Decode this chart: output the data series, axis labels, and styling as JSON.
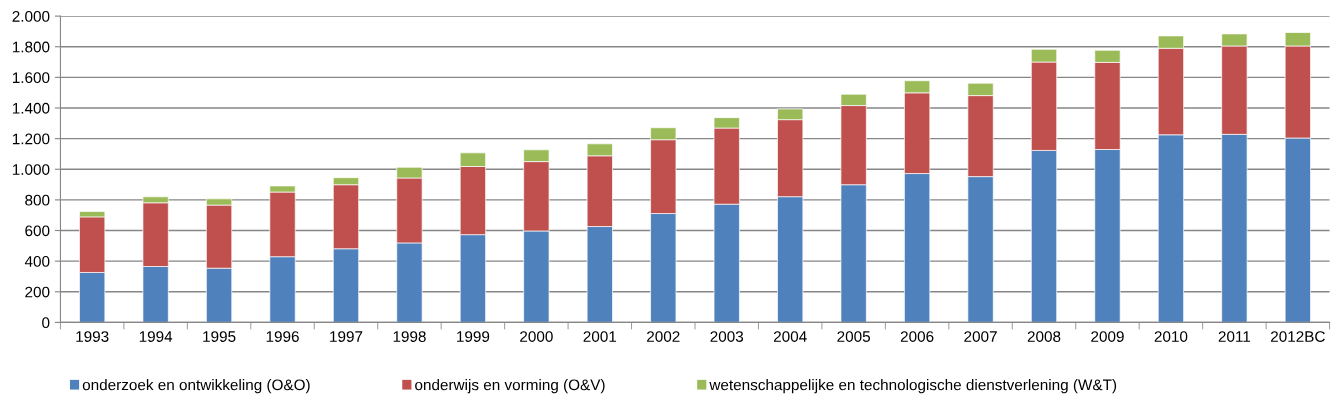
{
  "chart_data": {
    "type": "bar",
    "stacked": true,
    "grid": "y",
    "legend": "bottom",
    "categories": [
      "1993",
      "1994",
      "1995",
      "1996",
      "1997",
      "1998",
      "1999",
      "2000",
      "2001",
      "2002",
      "2003",
      "2004",
      "2005",
      "2006",
      "2007",
      "2008",
      "2009",
      "2010",
      "2011",
      "2012BC"
    ],
    "series": [
      {
        "name": "onderzoek en ontwikkeling (O&O)",
        "color": "#4f81bd",
        "values": [
          326,
          365,
          354,
          429,
          481,
          519,
          573,
          597,
          626,
          711,
          772,
          821,
          899,
          972,
          952,
          1123,
          1129,
          1225,
          1228,
          1204
        ]
      },
      {
        "name": "onderwijs en vorming (O&V)",
        "color": "#c0504d",
        "values": [
          363,
          416,
          412,
          422,
          418,
          424,
          445,
          453,
          462,
          482,
          497,
          503,
          517,
          527,
          529,
          577,
          569,
          565,
          577,
          601
        ]
      },
      {
        "name": "wetenschappelijke en technologische dienstverlening (W&T)",
        "color": "#9bbb59",
        "values": [
          35,
          39,
          41,
          40,
          46,
          70,
          89,
          77,
          78,
          78,
          68,
          70,
          74,
          79,
          81,
          83,
          79,
          81,
          79,
          88
        ]
      }
    ],
    "ylim": [
      0,
      2000
    ],
    "yticks": [
      0,
      200,
      400,
      600,
      800,
      {
        "value": 1000,
        "label": "1.000"
      },
      {
        "value": 1200,
        "label": "1.200"
      },
      {
        "value": 1400,
        "label": "1.400"
      },
      {
        "value": 1600,
        "label": "1.600"
      },
      {
        "value": 1800,
        "label": "1.800"
      },
      {
        "value": 2000,
        "label": "2.000"
      }
    ]
  }
}
